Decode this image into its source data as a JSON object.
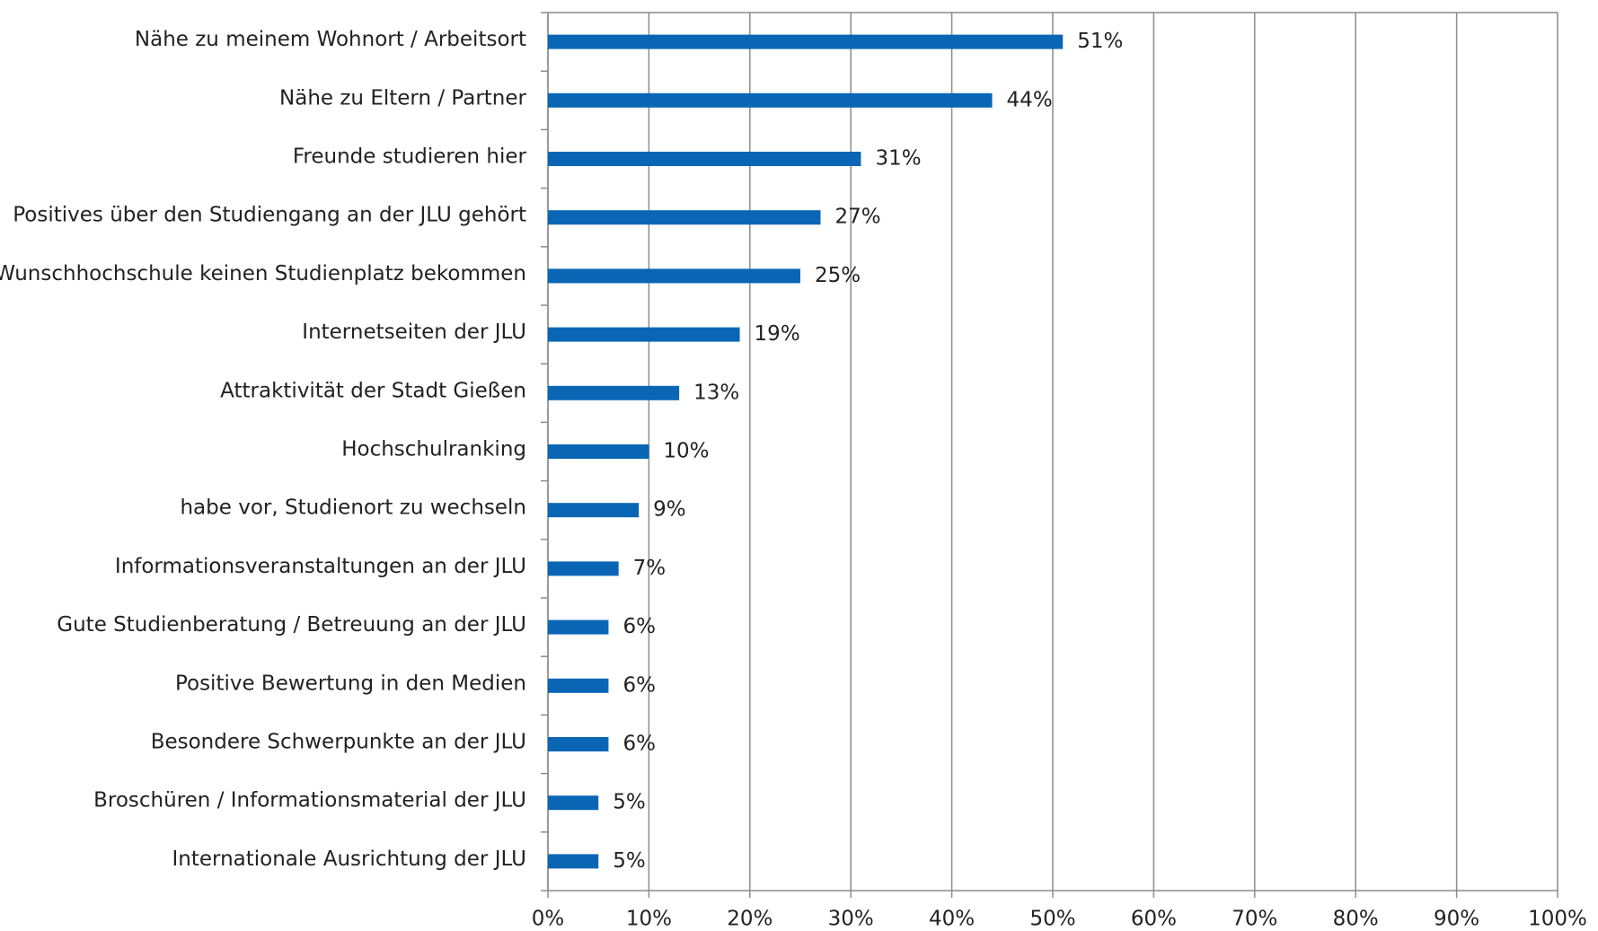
{
  "chart_data": {
    "type": "bar",
    "orientation": "horizontal",
    "categories": [
      "Nähe zu meinem Wohnort / Arbeitsort",
      "Nähe zu Eltern / Partner",
      "Freunde studieren hier",
      "Positives über den Studiengang an der JLU gehört",
      "an Wunschhochschule keinen Studienplatz bekommen",
      "Internetseiten der JLU",
      "Attraktivität der Stadt Gießen",
      "Hochschulranking",
      "habe vor, Studienort zu wechseln",
      "Informationsveranstaltungen an der JLU",
      "Gute Studienberatung / Betreuung an der JLU",
      "Positive Bewertung in den Medien",
      "Besondere Schwerpunkte an der JLU",
      "Broschüren / Informationsmaterial der JLU",
      "Internationale Ausrichtung der JLU"
    ],
    "values": [
      51,
      44,
      31,
      27,
      25,
      19,
      13,
      10,
      9,
      7,
      6,
      6,
      6,
      5,
      5
    ],
    "value_labels": [
      "51%",
      "44%",
      "31%",
      "27%",
      "25%",
      "19%",
      "13%",
      "10%",
      "9%",
      "7%",
      "6%",
      "6%",
      "6%",
      "5%",
      "5%"
    ],
    "color": "#0a66b5",
    "xlim": [
      0,
      100
    ],
    "xticks": [
      {
        "value": 0,
        "label": "0%"
      },
      {
        "value": 10,
        "label": "10%"
      },
      {
        "value": 20,
        "label": "20%"
      },
      {
        "value": 30,
        "label": "30%"
      },
      {
        "value": 40,
        "label": "40%"
      },
      {
        "value": 50,
        "label": "50%"
      },
      {
        "value": 60,
        "label": "60%"
      },
      {
        "value": 70,
        "label": "70%"
      },
      {
        "value": 80,
        "label": "80%"
      },
      {
        "value": 90,
        "label": "90%"
      },
      {
        "value": 100,
        "label": "100%"
      }
    ],
    "grid": true
  }
}
